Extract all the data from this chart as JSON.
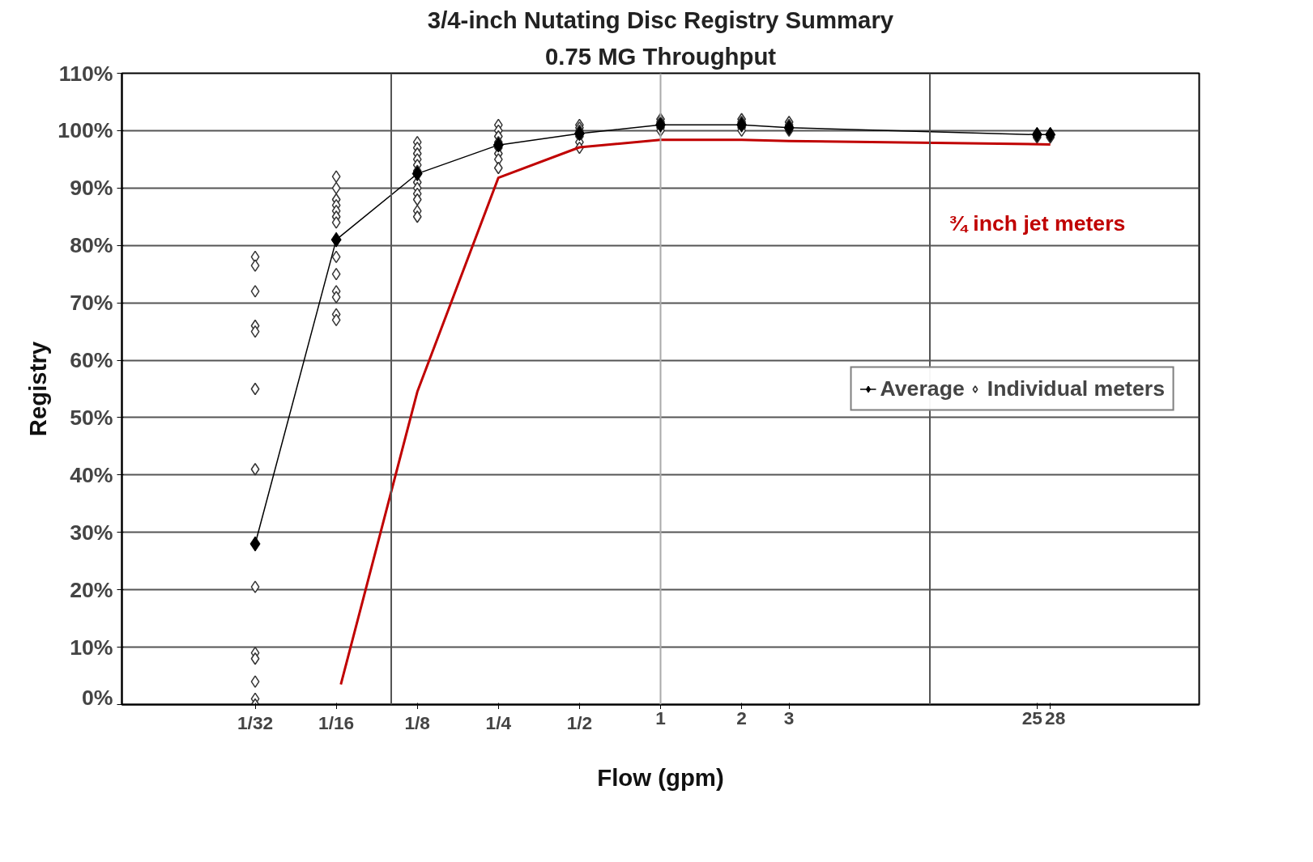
{
  "chart_data": {
    "type": "line",
    "title": "3/4-inch Nutating Disc Registry Summary",
    "subtitle": "0.75 MG Throughput",
    "xlabel": "Flow (gpm)",
    "ylabel": "Registry",
    "log": "x",
    "xlim": [
      0.01,
      100
    ],
    "xticks": [
      {
        "value": 0.03125,
        "label": "1/32"
      },
      {
        "value": 0.0625,
        "label": "1/16"
      },
      {
        "value": 0.125,
        "label": "1/8"
      },
      {
        "value": 0.25,
        "label": "1/4"
      },
      {
        "value": 0.5,
        "label": "1/2"
      },
      1,
      2,
      3,
      25,
      28
    ],
    "ylim": [
      0,
      110
    ],
    "yticks": [
      {
        "value": 0,
        "label": "0%"
      },
      {
        "value": 10,
        "label": "10%"
      },
      {
        "value": 20,
        "label": "20%"
      },
      {
        "value": 30,
        "label": "30%"
      },
      {
        "value": 40,
        "label": "40%"
      },
      {
        "value": 50,
        "label": "50%"
      },
      {
        "value": 60,
        "label": "60%"
      },
      {
        "value": 70,
        "label": "70%"
      },
      {
        "value": 80,
        "label": "80%"
      },
      {
        "value": 90,
        "label": "90%"
      },
      {
        "value": 100,
        "label": "100%"
      },
      {
        "value": 110,
        "label": "110%"
      }
    ],
    "grid": "y",
    "legend": "right",
    "ref_lines": [
      {
        "axis": "x",
        "value": 0.1,
        "color": "#555555"
      },
      {
        "axis": "x",
        "value": 1,
        "color": "#aaaaaa"
      },
      {
        "axis": "x",
        "value": 10,
        "color": "#555555"
      }
    ],
    "annotations": [
      "¾ inch jet meters"
    ],
    "series": [
      {
        "name": "Average",
        "color": "#000000",
        "marker": "diamond",
        "x": [
          0.03125,
          0.0625,
          0.125,
          0.25,
          0.5,
          1,
          2,
          3,
          25,
          28
        ],
        "values": [
          28,
          81,
          92.5,
          97.5,
          99.5,
          101,
          101,
          100.5,
          99.3,
          99.3
        ]
      },
      {
        "name": "Individual meters",
        "type": "scatter",
        "color": "#333333",
        "marker": "diamond",
        "x": [
          0.03125,
          0.03125,
          0.03125,
          0.03125,
          0.03125,
          0.03125,
          0.03125,
          0.03125,
          0.03125,
          0.03125,
          0.03125,
          0.03125,
          0.03125,
          0.0625,
          0.0625,
          0.0625,
          0.0625,
          0.0625,
          0.0625,
          0.0625,
          0.0625,
          0.0625,
          0.0625,
          0.0625,
          0.0625,
          0.0625,
          0.125,
          0.125,
          0.125,
          0.125,
          0.125,
          0.125,
          0.125,
          0.125,
          0.125,
          0.125,
          0.125,
          0.125,
          0.25,
          0.25,
          0.25,
          0.25,
          0.25,
          0.25,
          0.25,
          0.25,
          0.5,
          0.5,
          0.5,
          0.5,
          0.5,
          0.5,
          1,
          1,
          1,
          1,
          2,
          2,
          2,
          2,
          3,
          3,
          3,
          25,
          25,
          28,
          28
        ],
        "values": [
          78,
          76.5,
          72,
          66,
          65,
          55,
          41,
          20.5,
          9,
          8,
          4,
          1,
          0,
          92,
          90,
          88,
          87,
          86,
          85,
          84,
          78,
          75,
          72,
          71,
          68,
          67,
          98,
          97,
          96,
          95,
          94,
          93,
          91,
          90,
          89,
          88,
          86,
          85,
          101,
          100,
          99,
          98,
          97,
          96,
          95,
          93.5,
          101,
          100.5,
          100,
          99,
          98,
          97,
          102,
          101.5,
          100.5,
          100,
          102,
          101.5,
          100.5,
          100,
          101.5,
          101,
          100,
          99.5,
          98.8,
          99.5,
          98.8
        ]
      },
      {
        "type": "line",
        "color": "#c00000",
        "marker": "none",
        "x": [
          0.065,
          0.125,
          0.25,
          0.5,
          1,
          2,
          3,
          28
        ],
        "values": [
          3.5,
          54.5,
          91.8,
          97.1,
          98.4,
          98.4,
          98.2,
          97.6
        ]
      }
    ]
  }
}
